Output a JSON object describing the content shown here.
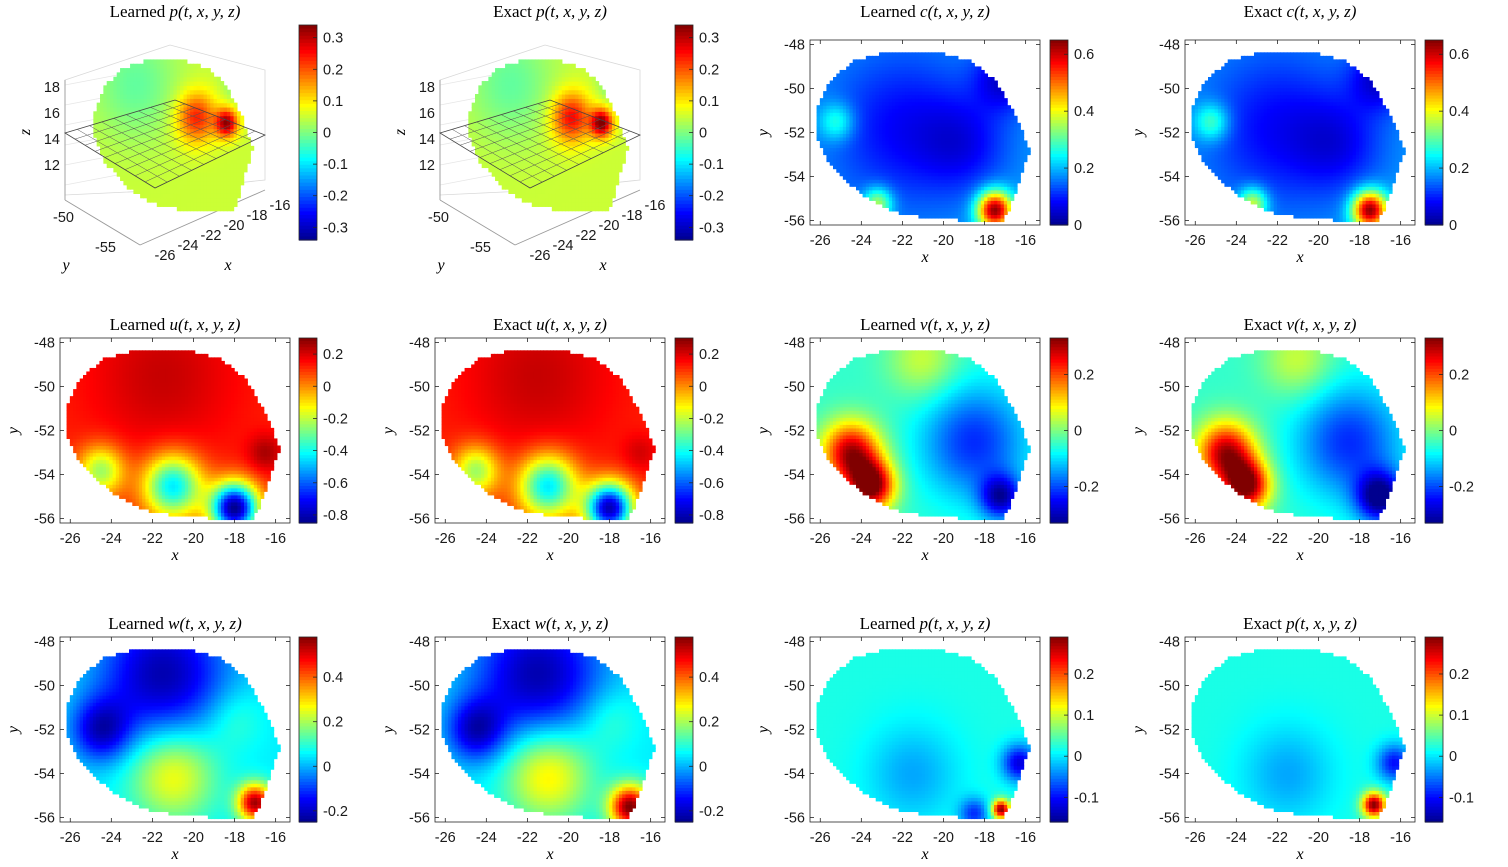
{
  "figure": {
    "colormap": "jet",
    "colormap_stops": [
      "#00008f",
      "#0000ff",
      "#0080ff",
      "#00ffff",
      "#80ff80",
      "#ffff00",
      "#ff8000",
      "#ff0000",
      "#800000"
    ],
    "panels": [
      {
        "id": "learned-p-3d",
        "title_word": "Learned",
        "title_var": "p",
        "title_args": "(t, x, y, z)",
        "type": "surface3d",
        "xlabel": "x",
        "ylabel": "y",
        "zlabel": "z",
        "x_ticks": [
          "-26",
          "-24",
          "-22",
          "-20",
          "-18",
          "-16"
        ],
        "y_ticks": [
          "-50",
          "-55"
        ],
        "z_ticks": [
          "18",
          "16",
          "14",
          "12"
        ],
        "colorbar": {
          "range": [
            -0.34,
            0.34
          ],
          "ticks": [
            0.3,
            0.2,
            0.1,
            0,
            -0.1,
            -0.2,
            -0.3
          ]
        },
        "base_value": 0.05,
        "blobs": [
          {
            "x": -19.5,
            "y": -51.2,
            "v": 0.24,
            "s": 0.9
          },
          {
            "x": -17.5,
            "y": -51.5,
            "v": 0.32,
            "s": 0.5
          },
          {
            "x": -23.5,
            "y": -49.5,
            "v": -0.02,
            "s": 2.0
          },
          {
            "x": -16.2,
            "y": -49.0,
            "v": -0.12,
            "s": 0.8
          }
        ]
      },
      {
        "id": "exact-p-3d",
        "title_word": "Exact",
        "title_var": "p",
        "title_args": "(t, x, y, z)",
        "type": "surface3d",
        "xlabel": "x",
        "ylabel": "y",
        "zlabel": "z",
        "x_ticks": [
          "-26",
          "-24",
          "-22",
          "-20",
          "-18",
          "-16"
        ],
        "y_ticks": [
          "-50",
          "-55"
        ],
        "z_ticks": [
          "18",
          "16",
          "14",
          "12"
        ],
        "colorbar": {
          "range": [
            -0.34,
            0.34
          ],
          "ticks": [
            0.3,
            0.2,
            0.1,
            0,
            -0.1,
            -0.2,
            -0.3
          ]
        },
        "base_value": 0.05,
        "blobs": [
          {
            "x": -19.5,
            "y": -51.2,
            "v": 0.26,
            "s": 0.9
          },
          {
            "x": -17.5,
            "y": -51.5,
            "v": 0.34,
            "s": 0.5
          },
          {
            "x": -23.5,
            "y": -49.5,
            "v": -0.02,
            "s": 2.0
          },
          {
            "x": -16.2,
            "y": -49.0,
            "v": -0.14,
            "s": 0.8
          }
        ]
      },
      {
        "id": "learned-c",
        "title_word": "Learned",
        "title_var": "c",
        "title_args": "(t, x, y, z)",
        "type": "contour2d",
        "xlabel": "x",
        "ylabel": "y",
        "colorbar": {
          "range": [
            0,
            0.65
          ],
          "ticks": [
            0.6,
            0.4,
            0.2,
            0
          ]
        },
        "base_value": 0.18,
        "blobs": [
          {
            "x": -22.0,
            "y": -51.8,
            "v": 0.08,
            "s": 2.5
          },
          {
            "x": -25.2,
            "y": -51.5,
            "v": 0.3,
            "s": 0.6
          },
          {
            "x": -23.2,
            "y": -55.2,
            "v": 0.38,
            "s": 0.5
          },
          {
            "x": -17.5,
            "y": -55.5,
            "v": 0.65,
            "s": 0.6
          },
          {
            "x": -19.0,
            "y": -52.5,
            "v": 0.1,
            "s": 1.5
          },
          {
            "x": -17.0,
            "y": -49.5,
            "v": 0.05,
            "s": 1.0
          }
        ]
      },
      {
        "id": "exact-c",
        "title_word": "Exact",
        "title_var": "c",
        "title_args": "(t, x, y, z)",
        "type": "contour2d",
        "xlabel": "x",
        "ylabel": "y",
        "colorbar": {
          "range": [
            0,
            0.65
          ],
          "ticks": [
            0.6,
            0.4,
            0.2,
            0
          ]
        },
        "base_value": 0.18,
        "blobs": [
          {
            "x": -22.0,
            "y": -51.8,
            "v": 0.08,
            "s": 2.5
          },
          {
            "x": -25.2,
            "y": -51.5,
            "v": 0.32,
            "s": 0.6
          },
          {
            "x": -23.2,
            "y": -55.2,
            "v": 0.4,
            "s": 0.5
          },
          {
            "x": -17.5,
            "y": -55.5,
            "v": 0.65,
            "s": 0.6
          },
          {
            "x": -19.0,
            "y": -52.5,
            "v": 0.1,
            "s": 1.5
          },
          {
            "x": -17.0,
            "y": -49.5,
            "v": 0.05,
            "s": 1.0
          }
        ]
      },
      {
        "id": "learned-u",
        "title_word": "Learned",
        "title_var": "u",
        "title_args": "(t, x, y, z)",
        "type": "contour2d",
        "xlabel": "x",
        "ylabel": "y",
        "colorbar": {
          "range": [
            -0.85,
            0.3
          ],
          "ticks": [
            0.2,
            0,
            -0.2,
            -0.4,
            -0.6,
            -0.8
          ]
        },
        "base_value": 0.12,
        "blobs": [
          {
            "x": -21.5,
            "y": -49.5,
            "v": 0.22,
            "s": 2.5
          },
          {
            "x": -16.5,
            "y": -53.0,
            "v": 0.25,
            "s": 0.6
          },
          {
            "x": -21.0,
            "y": -54.5,
            "v": -0.45,
            "s": 1.0
          },
          {
            "x": -18.0,
            "y": -55.5,
            "v": -0.85,
            "s": 0.8
          },
          {
            "x": -24.5,
            "y": -53.8,
            "v": -0.25,
            "s": 0.8
          }
        ]
      },
      {
        "id": "exact-u",
        "title_word": "Exact",
        "title_var": "u",
        "title_args": "(t, x, y, z)",
        "type": "contour2d",
        "xlabel": "x",
        "ylabel": "y",
        "colorbar": {
          "range": [
            -0.85,
            0.3
          ],
          "ticks": [
            0.2,
            0,
            -0.2,
            -0.4,
            -0.6,
            -0.8
          ]
        },
        "base_value": 0.12,
        "blobs": [
          {
            "x": -21.5,
            "y": -49.5,
            "v": 0.22,
            "s": 2.5
          },
          {
            "x": -16.5,
            "y": -53.0,
            "v": 0.2,
            "s": 0.6
          },
          {
            "x": -21.0,
            "y": -54.5,
            "v": -0.45,
            "s": 1.0
          },
          {
            "x": -18.0,
            "y": -55.5,
            "v": -0.8,
            "s": 0.8
          },
          {
            "x": -24.5,
            "y": -53.8,
            "v": -0.25,
            "s": 0.8
          }
        ]
      },
      {
        "id": "learned-v",
        "title_word": "Learned",
        "title_var": "v",
        "title_args": "(t, x, y, z)",
        "type": "contour2d",
        "xlabel": "x",
        "ylabel": "y",
        "colorbar": {
          "range": [
            -0.33,
            0.33
          ],
          "ticks": [
            0.2,
            0,
            -0.2
          ]
        },
        "base_value": -0.05,
        "blobs": [
          {
            "x": -24.5,
            "y": -53.0,
            "v": 0.3,
            "s": 1.0
          },
          {
            "x": -23.5,
            "y": -54.5,
            "v": 0.33,
            "s": 0.8
          },
          {
            "x": -18.5,
            "y": -52.5,
            "v": -0.22,
            "s": 1.8
          },
          {
            "x": -17.2,
            "y": -55.0,
            "v": -0.28,
            "s": 0.7
          },
          {
            "x": -21.0,
            "y": -48.8,
            "v": 0.05,
            "s": 1.2
          }
        ]
      },
      {
        "id": "exact-v",
        "title_word": "Exact",
        "title_var": "v",
        "title_args": "(t, x, y, z)",
        "type": "contour2d",
        "xlabel": "x",
        "ylabel": "y",
        "colorbar": {
          "range": [
            -0.33,
            0.33
          ],
          "ticks": [
            0.2,
            0,
            -0.2
          ]
        },
        "base_value": -0.05,
        "blobs": [
          {
            "x": -24.5,
            "y": -53.0,
            "v": 0.3,
            "s": 1.0
          },
          {
            "x": -23.5,
            "y": -54.5,
            "v": 0.32,
            "s": 0.8
          },
          {
            "x": -18.5,
            "y": -52.5,
            "v": -0.22,
            "s": 1.8
          },
          {
            "x": -17.0,
            "y": -55.0,
            "v": -0.33,
            "s": 0.8
          },
          {
            "x": -21.0,
            "y": -48.8,
            "v": 0.05,
            "s": 1.2
          }
        ]
      },
      {
        "id": "learned-w",
        "title_word": "Learned",
        "title_var": "w",
        "title_args": "(t, x, y, z)",
        "type": "contour2d",
        "xlabel": "x",
        "ylabel": "y",
        "colorbar": {
          "range": [
            -0.25,
            0.58
          ],
          "ticks": [
            0.4,
            0.2,
            0,
            -0.2
          ]
        },
        "base_value": 0.05,
        "blobs": [
          {
            "x": -21.5,
            "y": -49.5,
            "v": -0.22,
            "s": 2.2
          },
          {
            "x": -24.5,
            "y": -52.0,
            "v": -0.18,
            "s": 1.0
          },
          {
            "x": -21.0,
            "y": -54.0,
            "v": 0.28,
            "s": 1.5
          },
          {
            "x": -17.0,
            "y": -55.3,
            "v": 0.55,
            "s": 0.6
          },
          {
            "x": -18.0,
            "y": -51.5,
            "v": 0.12,
            "s": 1.0
          }
        ]
      },
      {
        "id": "exact-w",
        "title_word": "Exact",
        "title_var": "w",
        "title_args": "(t, x, y, z)",
        "type": "contour2d",
        "xlabel": "x",
        "ylabel": "y",
        "colorbar": {
          "range": [
            -0.25,
            0.58
          ],
          "ticks": [
            0.4,
            0.2,
            0,
            -0.2
          ]
        },
        "base_value": 0.05,
        "blobs": [
          {
            "x": -21.5,
            "y": -49.5,
            "v": -0.22,
            "s": 2.2
          },
          {
            "x": -24.5,
            "y": -52.0,
            "v": -0.18,
            "s": 1.0
          },
          {
            "x": -21.0,
            "y": -54.0,
            "v": 0.3,
            "s": 1.5
          },
          {
            "x": -17.0,
            "y": -55.5,
            "v": 0.58,
            "s": 0.7
          },
          {
            "x": -18.0,
            "y": -51.5,
            "v": 0.12,
            "s": 1.0
          }
        ]
      },
      {
        "id": "learned-p-2d",
        "title_word": "Learned",
        "title_var": "p",
        "title_args": "(t, x, y, z)",
        "type": "contour2d",
        "xlabel": "x",
        "ylabel": "y",
        "colorbar": {
          "range": [
            -0.16,
            0.29
          ],
          "ticks": [
            0.2,
            0.1,
            0,
            -0.1
          ]
        },
        "base_value": 0.02,
        "blobs": [
          {
            "x": -21.5,
            "y": -54.0,
            "v": -0.03,
            "s": 1.6
          },
          {
            "x": -16.3,
            "y": -53.5,
            "v": -0.12,
            "s": 0.6
          },
          {
            "x": -17.2,
            "y": -55.6,
            "v": 0.29,
            "s": 0.3
          },
          {
            "x": -18.5,
            "y": -55.8,
            "v": -0.08,
            "s": 0.5
          }
        ]
      },
      {
        "id": "exact-p-2d",
        "title_word": "Exact",
        "title_var": "p",
        "title_args": "(t, x, y, z)",
        "type": "contour2d",
        "xlabel": "x",
        "ylabel": "y",
        "colorbar": {
          "range": [
            -0.16,
            0.29
          ],
          "ticks": [
            0.2,
            0.1,
            0,
            -0.1
          ]
        },
        "base_value": 0.02,
        "blobs": [
          {
            "x": -21.5,
            "y": -54.0,
            "v": -0.03,
            "s": 1.6
          },
          {
            "x": -16.3,
            "y": -53.5,
            "v": -0.1,
            "s": 0.6
          },
          {
            "x": -17.3,
            "y": -55.4,
            "v": 0.29,
            "s": 0.4
          }
        ]
      }
    ],
    "axis2d": {
      "xlim": [
        -26.5,
        -15.3
      ],
      "ylim": [
        -56.2,
        -47.8
      ],
      "x_ticks": [
        -26,
        -24,
        -22,
        -20,
        -18,
        -16
      ],
      "y_ticks": [
        -48,
        -50,
        -52,
        -54,
        -56
      ]
    }
  },
  "chart_data": {
    "type": "heatmap",
    "panels": [
      "Learned p(t,x,y,z)",
      "Exact p(t,x,y,z)",
      "Learned c(t,x,y,z)",
      "Exact c(t,x,y,z)",
      "Learned u(t,x,y,z)",
      "Exact u(t,x,y,z)",
      "Learned v(t,x,y,z)",
      "Exact v(t,x,y,z)",
      "Learned w(t,x,y,z)",
      "Exact w(t,x,y,z)",
      "Learned p(t,x,y,z)",
      "Exact p(t,x,y,z)"
    ],
    "xlabel": "x",
    "ylabel": "y",
    "xlim": [
      -26.5,
      -15.3
    ],
    "ylim": [
      -56.2,
      -47.8
    ],
    "colorbar_ranges": {
      "p_3d": [
        -0.34,
        0.34
      ],
      "c": [
        0,
        0.65
      ],
      "u": [
        -0.85,
        0.3
      ],
      "v": [
        -0.33,
        0.33
      ],
      "w": [
        -0.25,
        0.58
      ],
      "p_2d": [
        -0.16,
        0.29
      ]
    }
  }
}
